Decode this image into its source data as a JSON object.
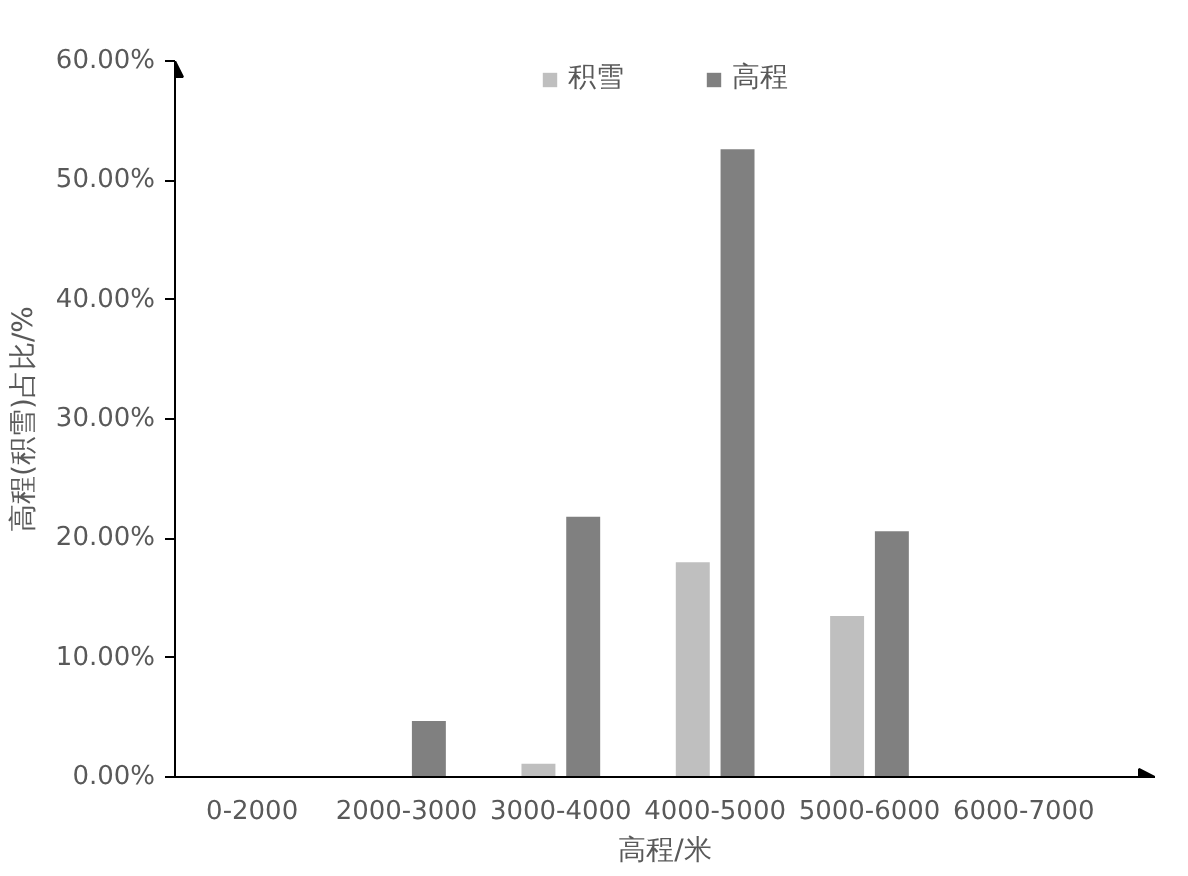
{
  "chart_data": {
    "type": "bar",
    "xlabel": "高程/米",
    "ylabel": "高程(积雪)占比/%",
    "categories": [
      "0-2000",
      "2000-3000",
      "3000-4000",
      "4000-5000",
      "5000-6000",
      "6000-7000"
    ],
    "series": [
      {
        "name": "积雪",
        "color": "#bfbfbf",
        "values": [
          0,
          0,
          1.1,
          18.0,
          13.5,
          0
        ]
      },
      {
        "name": "高程",
        "color": "#808080",
        "values": [
          0,
          4.7,
          21.8,
          52.6,
          20.6,
          0
        ]
      }
    ],
    "ylim": [
      0,
      60
    ],
    "yticks": [
      {
        "value": 0,
        "label": "0.00%"
      },
      {
        "value": 10,
        "label": "10.00%"
      },
      {
        "value": 20,
        "label": "20.00%"
      },
      {
        "value": 30,
        "label": "30.00%"
      },
      {
        "value": 40,
        "label": "40.00%"
      },
      {
        "value": 50,
        "label": "50.00%"
      },
      {
        "value": 60,
        "label": "60.00%"
      }
    ],
    "grid": false,
    "legend": "top"
  }
}
